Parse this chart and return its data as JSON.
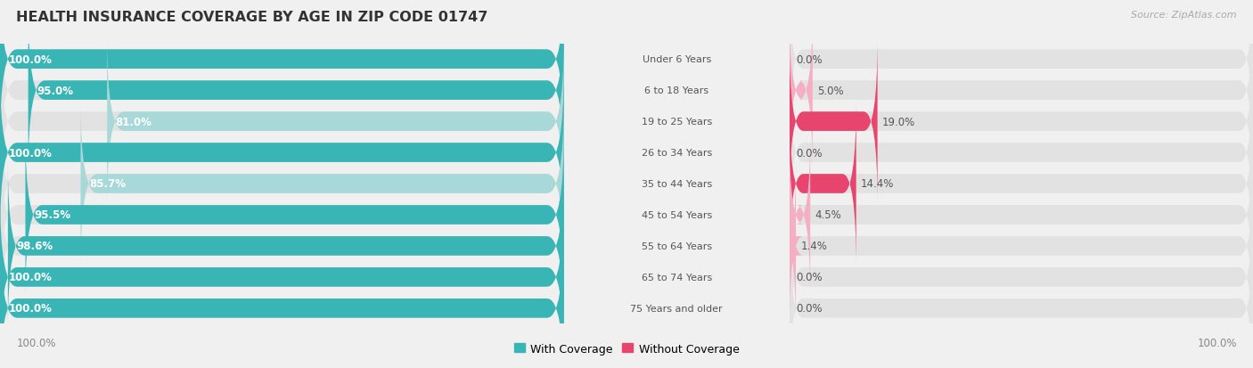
{
  "title": "HEALTH INSURANCE COVERAGE BY AGE IN ZIP CODE 01747",
  "source": "Source: ZipAtlas.com",
  "categories": [
    "Under 6 Years",
    "6 to 18 Years",
    "19 to 25 Years",
    "26 to 34 Years",
    "35 to 44 Years",
    "45 to 54 Years",
    "55 to 64 Years",
    "65 to 74 Years",
    "75 Years and older"
  ],
  "with_coverage": [
    100.0,
    95.0,
    81.0,
    100.0,
    85.7,
    95.5,
    98.6,
    100.0,
    100.0
  ],
  "without_coverage": [
    0.0,
    5.0,
    19.0,
    0.0,
    14.4,
    4.5,
    1.4,
    0.0,
    0.0
  ],
  "with_colors": [
    "#3ab5b5",
    "#3ab5b5",
    "#a8d8d8",
    "#3ab5b5",
    "#a8d8d8",
    "#3ab5b5",
    "#3ab5b5",
    "#3ab5b5",
    "#3ab5b5"
  ],
  "without_colors": [
    "#f4afc4",
    "#f4afc4",
    "#e8456e",
    "#f4afc4",
    "#e8456e",
    "#f4afc4",
    "#f4afc4",
    "#f4afc4",
    "#f4afc4"
  ],
  "color_with_legend": "#3ab5b5",
  "color_without_legend": "#e8456e",
  "bg_color": "#f0f0f0",
  "bar_bg_color": "#e2e2e2",
  "title_color": "#333333",
  "source_color": "#aaaaaa",
  "label_color_dark": "#555555",
  "x_label": "100.0%",
  "legend_with": "With Coverage",
  "legend_without": "Without Coverage"
}
